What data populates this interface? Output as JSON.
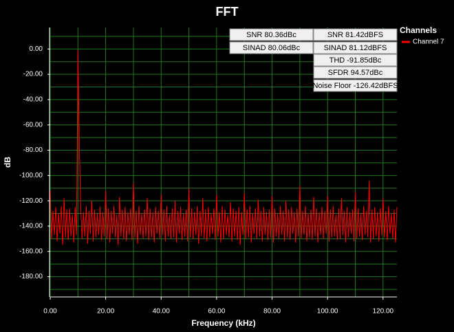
{
  "chart_data": {
    "type": "line",
    "title": "FFT",
    "xlabel": "Frequency (kHz)",
    "ylabel": "dB",
    "xlim": [
      0,
      125
    ],
    "ylim": [
      -196,
      17
    ],
    "xticks": [
      {
        "value": 0,
        "label": "0.00"
      },
      {
        "value": 20,
        "label": "20.00"
      },
      {
        "value": 40,
        "label": "40.00"
      },
      {
        "value": 60,
        "label": "60.00"
      },
      {
        "value": 80,
        "label": "80.00"
      },
      {
        "value": 100,
        "label": "100.00"
      },
      {
        "value": 120,
        "label": "120.00"
      }
    ],
    "yticks": [
      {
        "value": 0,
        "label": "0.00"
      },
      {
        "value": -20,
        "label": "-20.00"
      },
      {
        "value": -40,
        "label": "-40.00"
      },
      {
        "value": -60,
        "label": "-60.00"
      },
      {
        "value": -80,
        "label": "-80.00"
      },
      {
        "value": -100,
        "label": "-100.00"
      },
      {
        "value": -120,
        "label": "-120.00"
      },
      {
        "value": -140,
        "label": "-140.00"
      },
      {
        "value": -160,
        "label": "-160.00"
      },
      {
        "value": -180,
        "label": "-180.00"
      }
    ],
    "xgrid": [
      0,
      10,
      20,
      30,
      40,
      50,
      60,
      70,
      80,
      90,
      100,
      110,
      120
    ],
    "ygrid": [
      10,
      0,
      -10,
      -20,
      -30,
      -40,
      -50,
      -60,
      -70,
      -80,
      -90,
      -100,
      -110,
      -120,
      -130,
      -140,
      -150,
      -160,
      -170,
      -180,
      -190
    ],
    "grid": true,
    "grid_color": "#1f7a1f",
    "legend_title": "Channels",
    "annotations": [
      "SNR 80.36dBc",
      "SINAD 80.06dBc",
      "SNR 81.42dBFS",
      "SINAD 81.12dBFS",
      "THD -91.85dBc",
      "SFDR 94.57dBc",
      "Noise Floor -126.42dBFS"
    ],
    "x": [
      0,
      0.5,
      1,
      1.5,
      2,
      2.5,
      3,
      3.5,
      4,
      4.5,
      5,
      5.5,
      6,
      6.5,
      7,
      7.5,
      8,
      8.5,
      9,
      9.5,
      10,
      10.5,
      11,
      11.5,
      12,
      12.5,
      13,
      13.5,
      14,
      14.5,
      15,
      15.5,
      16,
      16.5,
      17,
      17.5,
      18,
      18.5,
      19,
      19.5,
      20,
      20.5,
      21,
      21.5,
      22,
      22.5,
      23,
      23.5,
      24,
      24.5,
      25,
      25.5,
      26,
      26.5,
      27,
      27.5,
      28,
      28.5,
      29,
      29.5,
      30,
      30.5,
      31,
      31.5,
      32,
      32.5,
      33,
      33.5,
      34,
      34.5,
      35,
      35.5,
      36,
      36.5,
      37,
      37.5,
      38,
      38.5,
      39,
      39.5,
      40,
      40.5,
      41,
      41.5,
      42,
      42.5,
      43,
      43.5,
      44,
      44.5,
      45,
      45.5,
      46,
      46.5,
      47,
      47.5,
      48,
      48.5,
      49,
      49.5,
      50,
      50.5,
      51,
      51.5,
      52,
      52.5,
      53,
      53.5,
      54,
      54.5,
      55,
      55.5,
      56,
      56.5,
      57,
      57.5,
      58,
      58.5,
      59,
      59.5,
      60,
      60.5,
      61,
      61.5,
      62,
      62.5,
      63,
      63.5,
      64,
      64.5,
      65,
      65.5,
      66,
      66.5,
      67,
      67.5,
      68,
      68.5,
      69,
      69.5,
      70,
      70.5,
      71,
      71.5,
      72,
      72.5,
      73,
      73.5,
      74,
      74.5,
      75,
      75.5,
      76,
      76.5,
      77,
      77.5,
      78,
      78.5,
      79,
      79.5,
      80,
      80.5,
      81,
      81.5,
      82,
      82.5,
      83,
      83.5,
      84,
      84.5,
      85,
      85.5,
      86,
      86.5,
      87,
      87.5,
      88,
      88.5,
      89,
      89.5,
      90,
      90.5,
      91,
      91.5,
      92,
      92.5,
      93,
      93.5,
      94,
      94.5,
      95,
      95.5,
      96,
      96.5,
      97,
      97.5,
      98,
      98.5,
      99,
      99.5,
      100,
      100.5,
      101,
      101.5,
      102,
      102.5,
      103,
      103.5,
      104,
      104.5,
      105,
      105.5,
      106,
      106.5,
      107,
      107.5,
      108,
      108.5,
      109,
      109.5,
      110,
      110.5,
      111,
      111.5,
      112,
      112.5,
      113,
      113.5,
      114,
      114.5,
      115,
      115.5,
      116,
      116.5,
      117,
      117.5,
      118,
      118.5,
      119,
      119.5,
      120,
      120.5,
      121,
      121.5,
      122,
      122.5,
      123,
      123.5,
      124,
      124.5,
      125
    ],
    "series": [
      {
        "name": "Channel 7",
        "color": "#ff0000",
        "values": [
          -112,
          -150,
          -128,
          -147,
          -125,
          -152,
          -130,
          -146,
          -124,
          -155,
          -118,
          -149,
          -127,
          -151,
          -126,
          -148,
          -131,
          -153,
          -125,
          -147,
          -1,
          -75,
          -126,
          -150,
          -129,
          -148,
          -124,
          -154,
          -128,
          -146,
          -120,
          -152,
          -127,
          -149,
          -130,
          -147,
          -125,
          -151,
          -129,
          -148,
          -112,
          -150,
          -126,
          -153,
          -128,
          -146,
          -124,
          -149,
          -131,
          -155,
          -117,
          -148,
          -127,
          -150,
          -125,
          -152,
          -129,
          -147,
          -126,
          -151,
          -106,
          -149,
          -128,
          -154,
          -124,
          -147,
          -130,
          -150,
          -127,
          -148,
          -118,
          -151,
          -126,
          -149,
          -129,
          -153,
          -125,
          -146,
          -128,
          -150,
          -115,
          -147,
          -127,
          -152,
          -124,
          -148,
          -131,
          -150,
          -126,
          -149,
          -120,
          -153,
          -128,
          -146,
          -125,
          -151,
          -130,
          -148,
          -127,
          -152,
          -110,
          -149,
          -126,
          -150,
          -129,
          -147,
          -124,
          -154,
          -128,
          -148,
          -118,
          -150,
          -127,
          -152,
          -125,
          -149,
          -130,
          -146,
          -126,
          -151,
          -115,
          -148,
          -129,
          -153,
          -124,
          -150,
          -127,
          -147,
          -131,
          -149,
          -121,
          -152,
          -126,
          -148,
          -128,
          -151,
          -125,
          -155,
          -129,
          -147,
          -114,
          -150,
          -127,
          -149,
          -124,
          -153,
          -130,
          -146,
          -126,
          -150,
          -119,
          -148,
          -128,
          -152,
          -125,
          -147,
          -129,
          -151,
          -127,
          -149,
          -116,
          -153,
          -126,
          -148,
          -130,
          -150,
          -124,
          -147,
          -128,
          -152,
          -120,
          -149,
          -127,
          -151,
          -125,
          -146,
          -129,
          -153,
          -126,
          -148,
          -108,
          -150,
          -128,
          -147,
          -124,
          -152,
          -130,
          -149,
          -127,
          -151,
          -117,
          -148,
          -126,
          -153,
          -129,
          -147,
          -125,
          -150,
          -128,
          -146,
          -116,
          -152,
          -127,
          -149,
          -124,
          -148,
          -131,
          -151,
          -126,
          -150,
          -118,
          -147,
          -128,
          -153,
          -125,
          -149,
          -129,
          -146,
          -127,
          -152,
          -113,
          -150,
          -126,
          -148,
          -130,
          -151,
          -124,
          -147,
          -128,
          -149,
          -104,
          -153,
          -127,
          -150,
          -125,
          -148,
          -129,
          -152,
          -126,
          -147,
          -118,
          -149,
          -128,
          -151,
          -124,
          -146,
          -130,
          -150,
          -127,
          -153,
          -125
        ]
      }
    ]
  }
}
